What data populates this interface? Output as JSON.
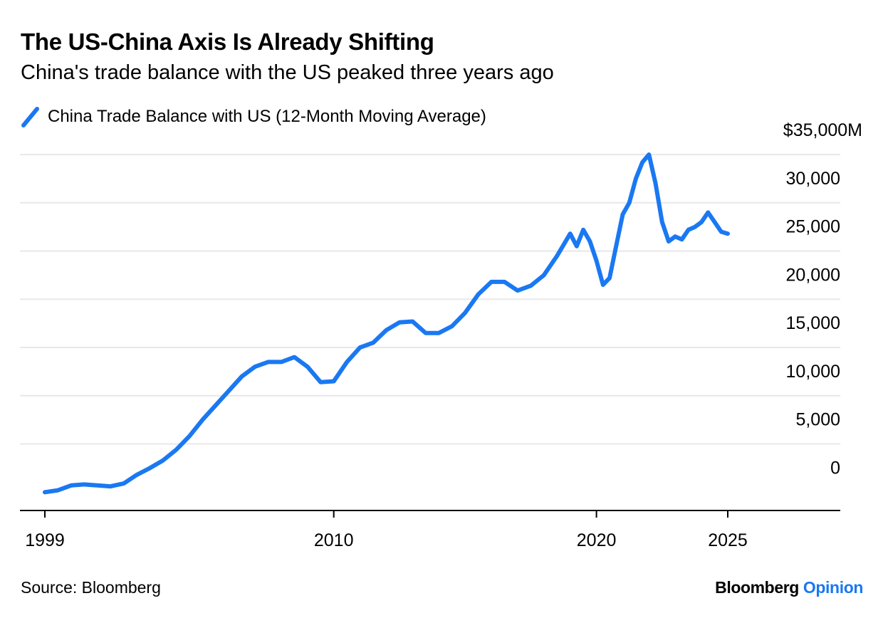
{
  "title": "The US-China Axis Is Already Shifting",
  "subtitle": "China's trade balance with the US peaked three years ago",
  "source": "Source: Bloomberg",
  "brand": {
    "name": "Bloomberg",
    "product": "Opinion",
    "name_color": "#000000",
    "product_color": "#1a78f2"
  },
  "colors": {
    "series": "#1a78f2",
    "grid": "#e8e8e8",
    "axis": "#000000"
  },
  "legend": {
    "icon": "diagonal-line-swatch"
  },
  "chart_data": {
    "type": "line",
    "title": "The US-China Axis Is Already Shifting",
    "subtitle": "China's trade balance with the US peaked three years ago",
    "xlabel": "",
    "ylabel": "",
    "x_tick_labels": [
      "1999",
      "2010",
      "2020",
      "2025"
    ],
    "x_tick_values": [
      1999,
      2010,
      2020,
      2025
    ],
    "xlim": [
      1999,
      2029
    ],
    "y_tick_labels": [
      "0",
      "5,000",
      "10,000",
      "15,000",
      "20,000",
      "25,000",
      "30,000",
      "$35,000M"
    ],
    "y_tick_values": [
      0,
      5000,
      10000,
      15000,
      20000,
      25000,
      30000,
      35000
    ],
    "ylim": [
      -1900,
      37000
    ],
    "y_axis_position": "right",
    "grid": "horizontal",
    "legend_position": "top-left",
    "series": [
      {
        "name": "China Trade Balance with US (12-Month Moving Average)",
        "x": [
          1999,
          1999.5,
          2000,
          2000.5,
          2001,
          2001.5,
          2002,
          2002.5,
          2003,
          2003.5,
          2004,
          2004.5,
          2005,
          2005.5,
          2006,
          2006.5,
          2007,
          2007.5,
          2008,
          2008.5,
          2009,
          2009.5,
          2010,
          2010.5,
          2011,
          2011.5,
          2012,
          2012.5,
          2013,
          2013.5,
          2014,
          2014.5,
          2015,
          2015.5,
          2016,
          2016.5,
          2017,
          2017.5,
          2018,
          2018.5,
          2019,
          2019.25,
          2019.5,
          2019.75,
          2020,
          2020.25,
          2020.5,
          2020.75,
          2021,
          2021.25,
          2021.5,
          2021.75,
          2022,
          2022.25,
          2022.5,
          2022.75,
          2023,
          2023.25,
          2023.5,
          2023.75,
          2024,
          2024.25,
          2024.5,
          2024.75,
          2025
        ],
        "y": [
          0,
          200,
          700,
          800,
          700,
          600,
          900,
          1800,
          2500,
          3300,
          4400,
          5800,
          7500,
          9000,
          10500,
          12000,
          13000,
          13500,
          13500,
          14000,
          13000,
          11400,
          11500,
          13500,
          15000,
          15500,
          16800,
          17600,
          17700,
          16500,
          16500,
          17200,
          18600,
          20500,
          21800,
          21800,
          20900,
          21400,
          22500,
          24500,
          26800,
          25500,
          27200,
          26000,
          24000,
          21500,
          22200,
          25500,
          28800,
          30000,
          32500,
          34200,
          35000,
          32000,
          28000,
          26000,
          26500,
          26200,
          27200,
          27500,
          28000,
          29000,
          28000,
          27000,
          26800
        ]
      }
    ]
  }
}
